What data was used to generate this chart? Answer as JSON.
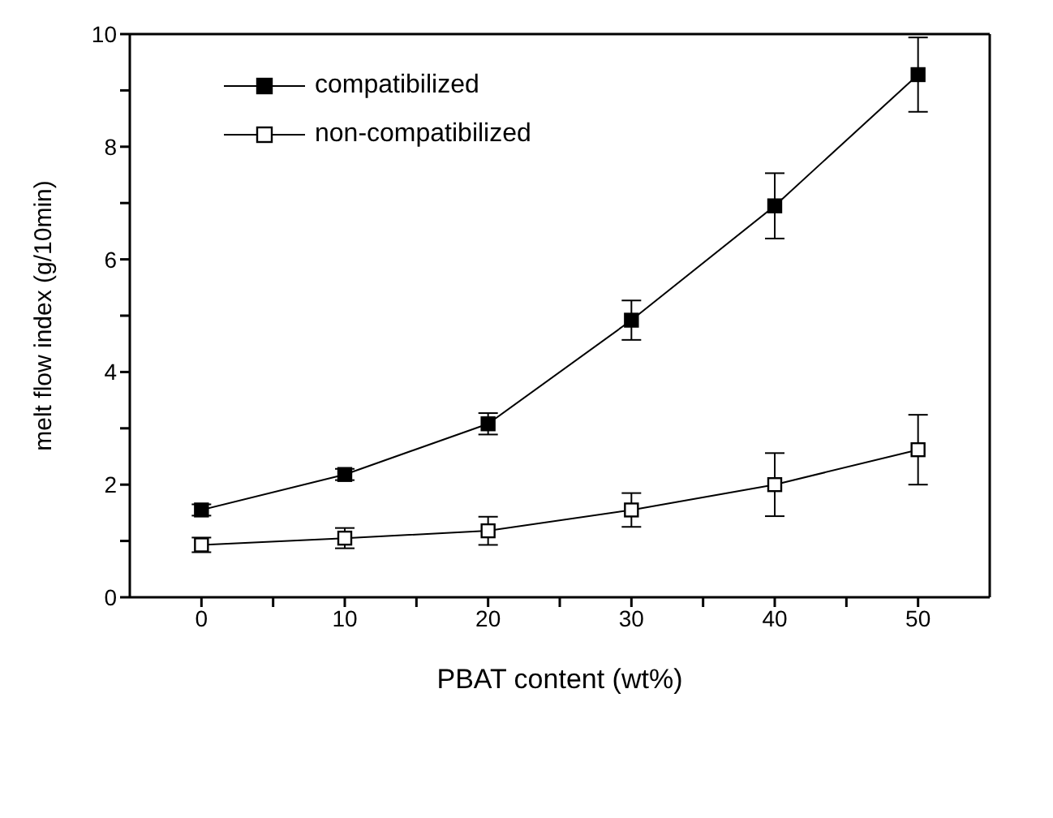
{
  "chart_data": {
    "type": "line",
    "xlabel": "PBAT content (wt%)",
    "ylabel": "melt flow index (g/10min)",
    "x": [
      0,
      10,
      20,
      30,
      40,
      50
    ],
    "series": [
      {
        "name": "compatibilized",
        "color": "#000000",
        "values": [
          1.55,
          2.18,
          3.08,
          4.92,
          6.95,
          9.28
        ],
        "errors": [
          0.1,
          0.1,
          0.19,
          0.35,
          0.58,
          0.66
        ]
      },
      {
        "name": "non-compatibilized",
        "color": "#000000",
        "values": [
          0.93,
          1.05,
          1.18,
          1.55,
          2.0,
          2.62
        ],
        "errors": [
          0.13,
          0.18,
          0.25,
          0.3,
          0.56,
          0.62
        ]
      }
    ],
    "xlim": [
      -5,
      55
    ],
    "xticks": [
      0,
      {
        "value": 5,
        "label": null
      },
      10,
      {
        "value": 15,
        "label": null
      },
      20,
      {
        "value": 25,
        "label": null
      },
      30,
      {
        "value": 35,
        "label": null
      },
      40,
      {
        "value": 45,
        "label": null
      },
      50
    ],
    "ylim": [
      0,
      10
    ],
    "yticks": [
      0,
      {
        "value": 1,
        "label": null
      },
      2,
      {
        "value": 3,
        "label": null
      },
      4,
      {
        "value": 5,
        "label": null
      },
      6,
      {
        "value": 7,
        "label": null
      },
      8,
      {
        "value": 9,
        "label": null
      },
      10
    ],
    "grid": false,
    "legend": "top left",
    "marker": "square",
    "line_style": "solid"
  }
}
